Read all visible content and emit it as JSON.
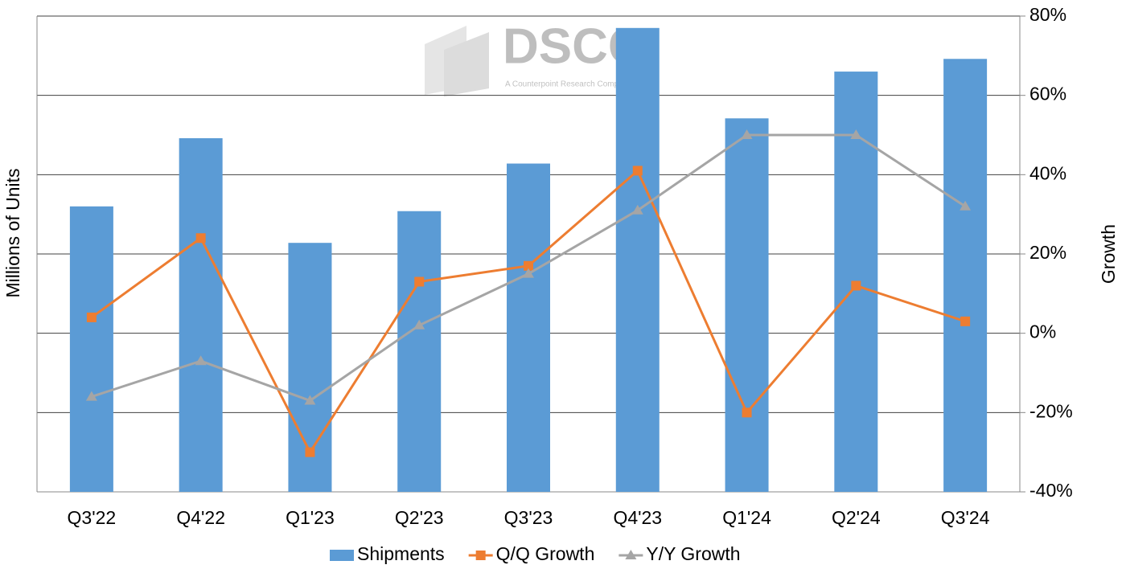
{
  "chart_data": {
    "type": "bar",
    "categories": [
      "Q3'22",
      "Q4'22",
      "Q1'23",
      "Q2'23",
      "Q3'23",
      "Q4'23",
      "Q1'24",
      "Q2'24",
      "Q3'24"
    ],
    "ylabel": "Millions of Units",
    "y2label": "Growth",
    "ylim": [
      0,
      6
    ],
    "y2lim": [
      -40,
      80
    ],
    "y2ticks": [
      {
        "value": -40,
        "label": "-40%"
      },
      {
        "value": -20,
        "label": "-20%"
      },
      {
        "value": 0,
        "label": "0%"
      },
      {
        "value": 20,
        "label": "20%"
      },
      {
        "value": 40,
        "label": "40%"
      },
      {
        "value": 60,
        "label": "60%"
      },
      {
        "value": 80,
        "label": "80%"
      }
    ],
    "grid": true,
    "legend": "bottom",
    "watermark": {
      "text": "DSCC",
      "subtext": "A Counterpoint Research Company"
    },
    "series": [
      {
        "name": "Shipments",
        "type": "bar",
        "color": "#5b9bd5",
        "values": [
          3.6,
          4.46,
          3.14,
          3.54,
          4.14,
          5.85,
          4.71,
          5.3,
          5.46
        ]
      },
      {
        "name": "Q/Q Growth",
        "type": "line",
        "axis": "y2",
        "marker": "square",
        "color": "#ed7d31",
        "values": [
          4,
          24,
          -30,
          13,
          17,
          41,
          -20,
          12,
          3
        ]
      },
      {
        "name": "Y/Y Growth",
        "type": "line",
        "axis": "y2",
        "marker": "triangle",
        "color": "#a5a5a5",
        "values": [
          -16,
          -7,
          -17,
          2,
          15,
          31,
          50,
          50,
          32
        ]
      }
    ]
  }
}
